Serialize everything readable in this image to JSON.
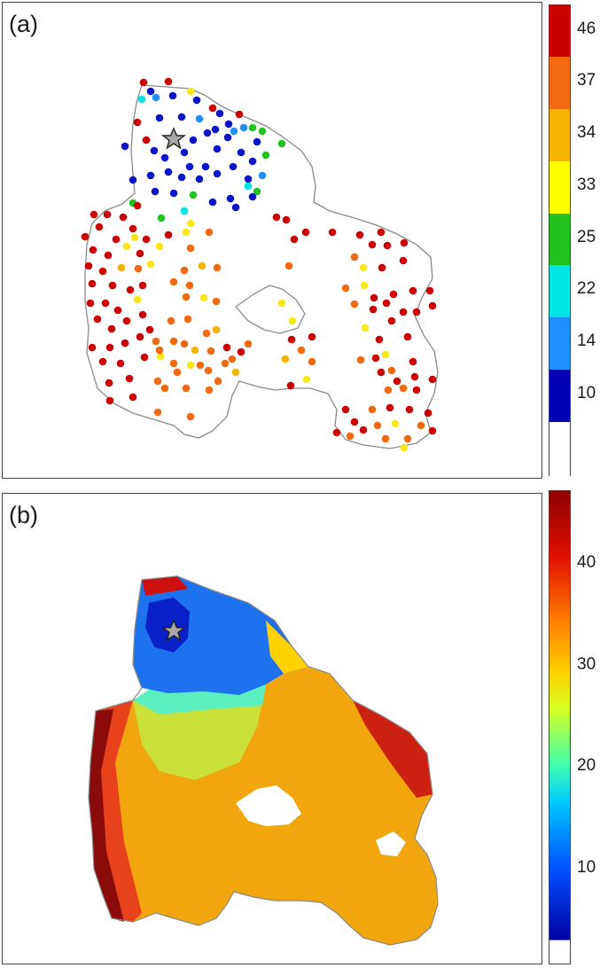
{
  "panels": [
    {
      "label": "(a)",
      "colorbar": {
        "type": "discrete",
        "ticks": [
          "46",
          "37",
          "34",
          "33",
          "25",
          "22",
          "14",
          "10"
        ],
        "colors": [
          "#cc0000",
          "#f26a10",
          "#f5b400",
          "#ffff00",
          "#22c21e",
          "#00e4e4",
          "#1e90ff",
          "#0000b4",
          "#ffffff"
        ]
      },
      "marker": "star",
      "point_categories": {
        "c46": "#cc0000",
        "c37": "#f26a10",
        "c34": "#f5b400",
        "c33": "#f8e81a",
        "c25": "#22c21e",
        "c22": "#00e4e4",
        "c14": "#1e90ff",
        "c10": "#0a14c8"
      }
    },
    {
      "label": "(b)",
      "colorbar": {
        "type": "continuous",
        "ticks": [
          "40",
          "30",
          "20",
          "10"
        ],
        "range": [
          0,
          47
        ],
        "colors": [
          "#0000a0",
          "#0050ff",
          "#00c8ff",
          "#40ffb0",
          "#d8ff20",
          "#ffd000",
          "#ff7a00",
          "#e01000",
          "#8b0000"
        ]
      },
      "marker": "star"
    }
  ]
}
